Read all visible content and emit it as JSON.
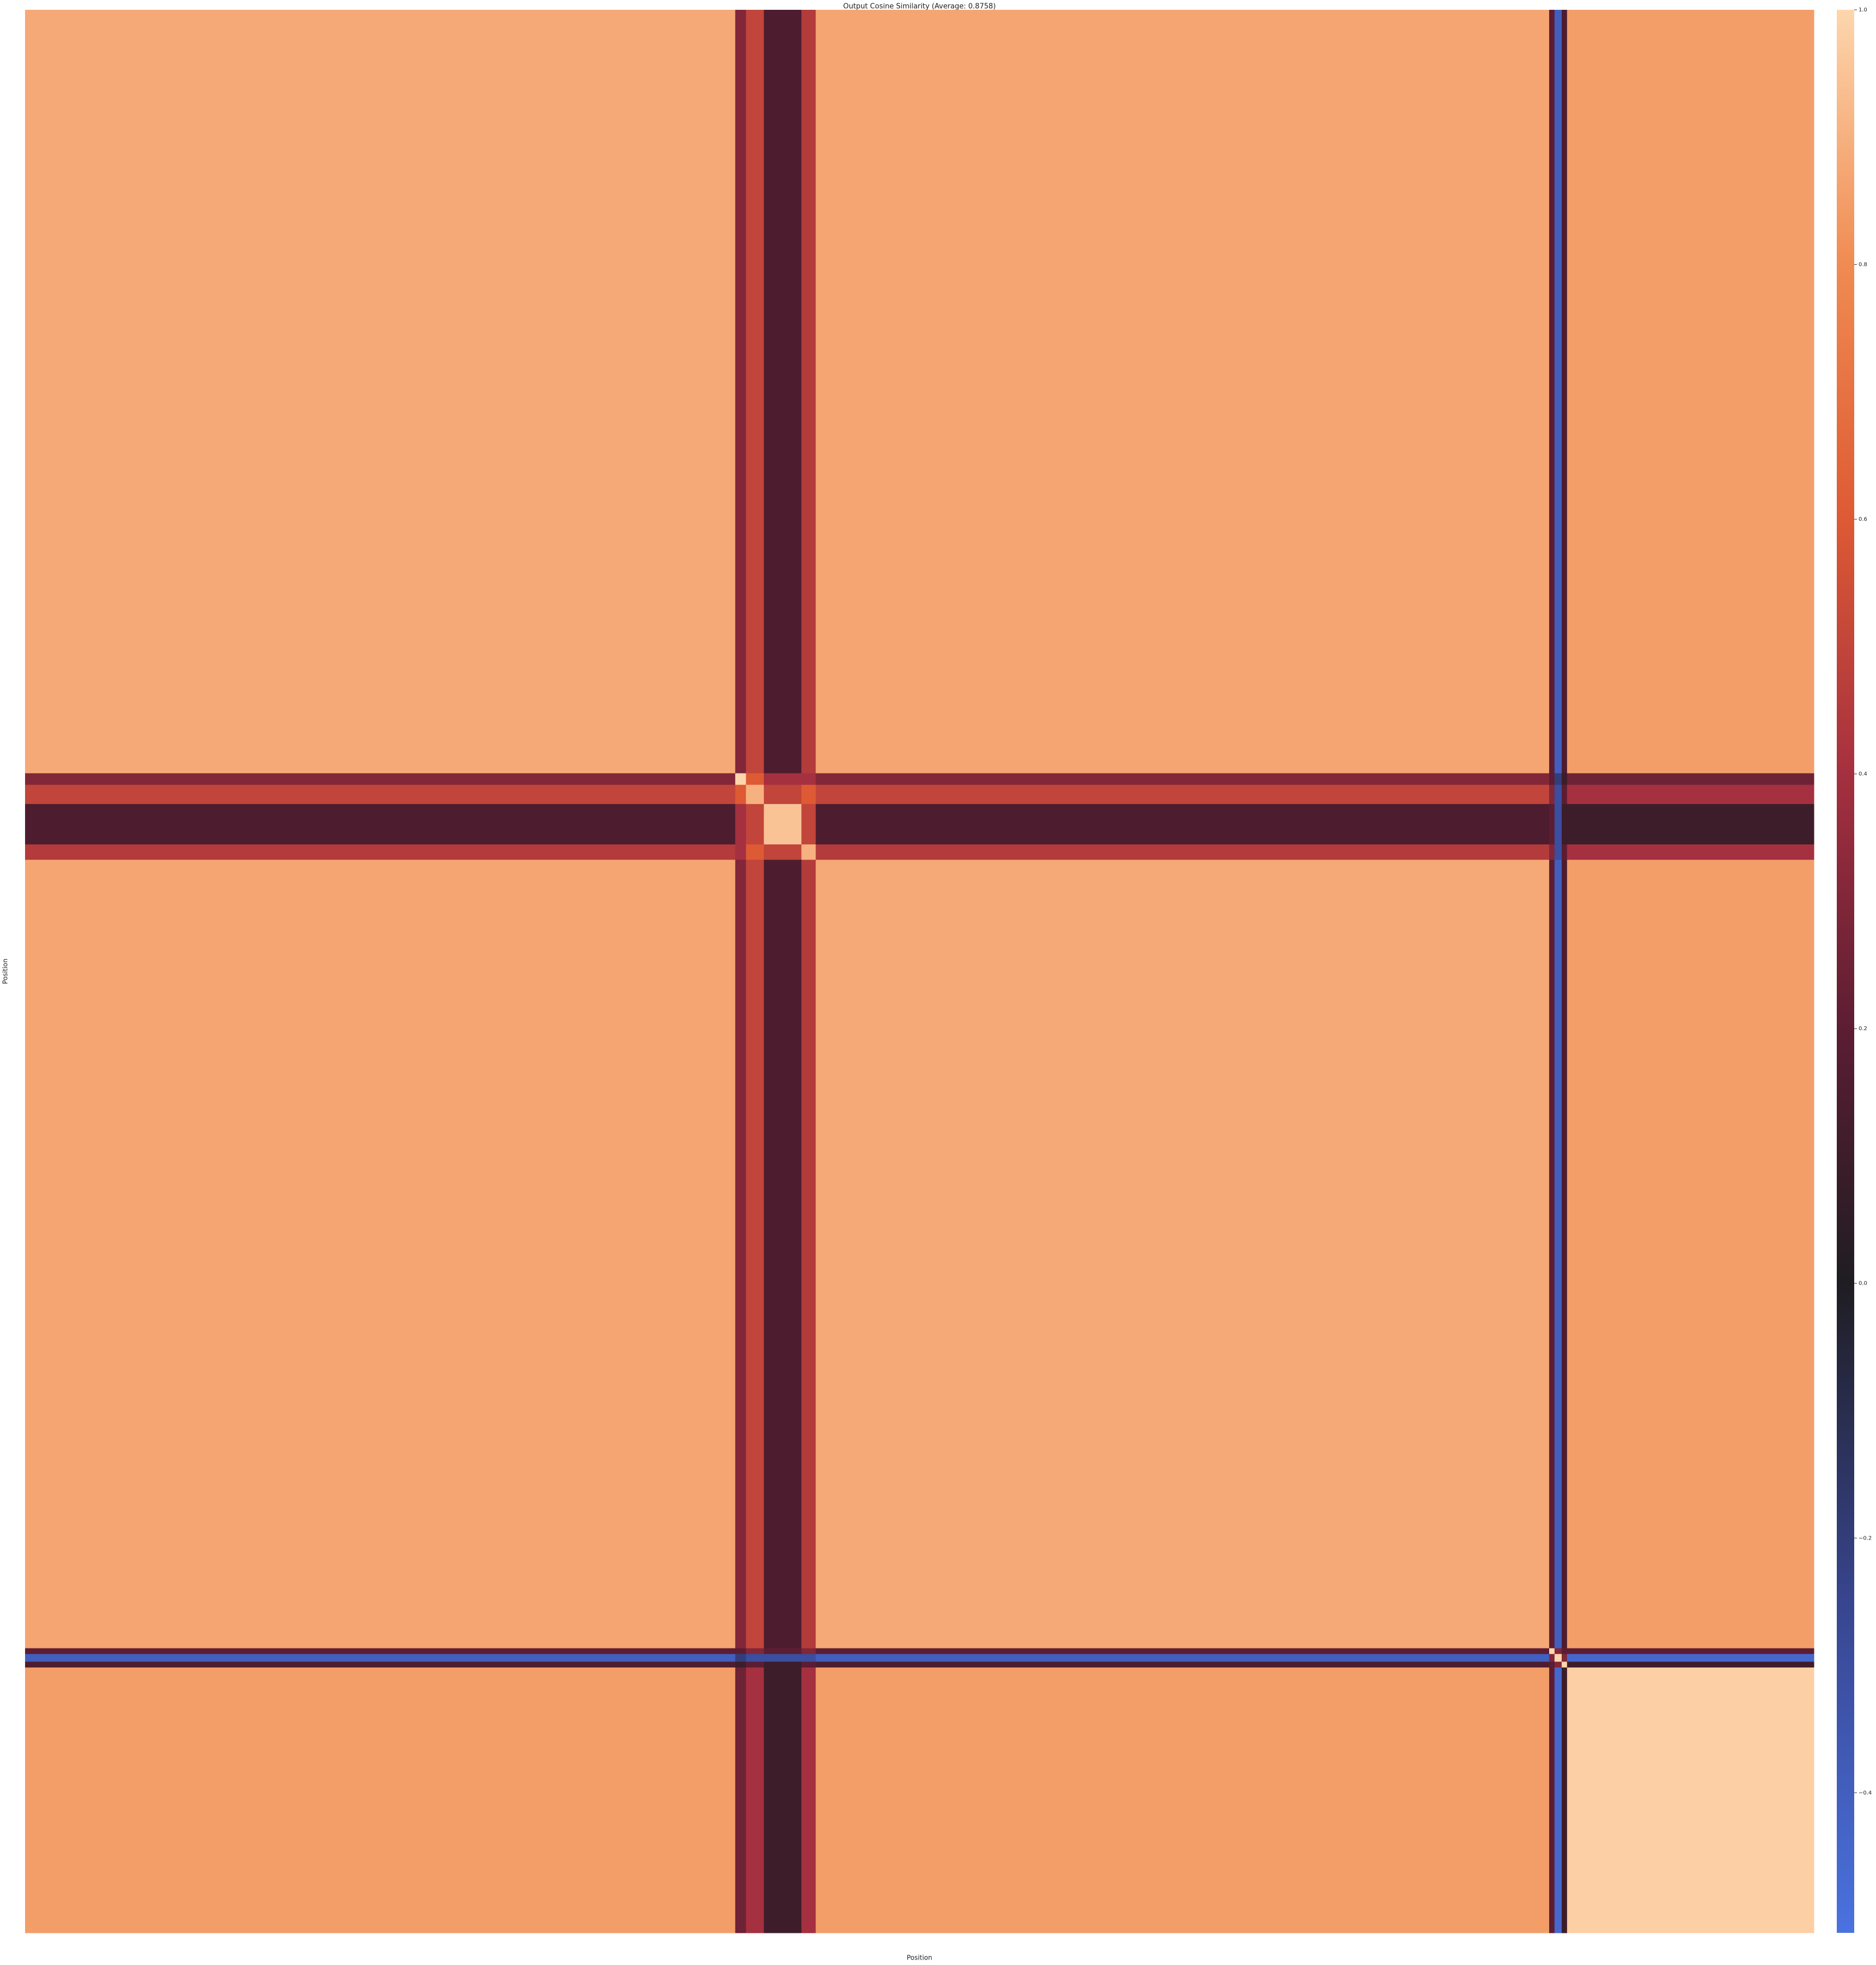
{
  "chart_data": {
    "type": "heatmap",
    "title": "Output Cosine Similarity (Average: 0.8758)",
    "x_label": "Position",
    "y_label": "Position",
    "xlim": [
      0,
      100
    ],
    "ylim": [
      0,
      100
    ],
    "x_edges": [
      0,
      39.7,
      40.3,
      41.3,
      43.4,
      44.2,
      85.2,
      85.5,
      85.9,
      86.2,
      100
    ],
    "y_edges": [
      0,
      39.7,
      40.3,
      41.3,
      43.4,
      44.2,
      85.2,
      85.5,
      85.9,
      86.2,
      100
    ],
    "values": [
      [
        0.88,
        0.3,
        0.5,
        0.15,
        0.45,
        0.87,
        0.2,
        -0.4,
        0.15,
        0.85
      ],
      [
        0.3,
        1.0,
        0.6,
        0.4,
        0.4,
        0.3,
        0.2,
        -0.2,
        0.1,
        0.25
      ],
      [
        0.5,
        0.6,
        0.9,
        0.5,
        0.6,
        0.5,
        0.3,
        -0.3,
        0.2,
        0.4
      ],
      [
        0.15,
        0.4,
        0.5,
        0.95,
        0.5,
        0.15,
        0.2,
        -0.3,
        0.1,
        0.1
      ],
      [
        0.45,
        0.4,
        0.6,
        0.5,
        0.9,
        0.45,
        0.3,
        -0.3,
        0.2,
        0.4
      ],
      [
        0.87,
        0.3,
        0.5,
        0.15,
        0.45,
        0.88,
        0.2,
        -0.4,
        0.15,
        0.85
      ],
      [
        0.2,
        0.2,
        0.3,
        0.2,
        0.3,
        0.2,
        1.0,
        0.3,
        0.2,
        0.2
      ],
      [
        -0.4,
        -0.2,
        -0.3,
        -0.3,
        -0.3,
        -0.4,
        0.3,
        1.0,
        0.3,
        -0.45
      ],
      [
        0.15,
        0.1,
        0.2,
        0.1,
        0.2,
        0.15,
        0.2,
        0.3,
        1.0,
        0.1
      ],
      [
        0.85,
        0.25,
        0.4,
        0.1,
        0.4,
        0.85,
        0.2,
        -0.45,
        0.1,
        0.98
      ]
    ],
    "clim": [
      -0.51,
      1.0
    ],
    "colorbar_ticks": [
      -0.4,
      -0.2,
      0.0,
      0.2,
      0.4,
      0.6,
      0.8,
      1.0
    ],
    "colorscale": [
      [
        -0.51,
        "#4a72e0"
      ],
      [
        -0.25,
        "#38458f"
      ],
      [
        0.0,
        "#1f1d22"
      ],
      [
        0.2,
        "#5c1d33"
      ],
      [
        0.4,
        "#a5303f"
      ],
      [
        0.6,
        "#dd5a34"
      ],
      [
        0.8,
        "#f08b52"
      ],
      [
        1.0,
        "#fdd6ad"
      ]
    ]
  }
}
